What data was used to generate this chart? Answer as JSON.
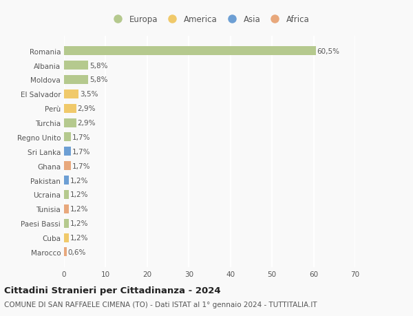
{
  "countries": [
    "Romania",
    "Albania",
    "Moldova",
    "El Salvador",
    "Perù",
    "Turchia",
    "Regno Unito",
    "Sri Lanka",
    "Ghana",
    "Pakistan",
    "Ucraina",
    "Tunisia",
    "Paesi Bassi",
    "Cuba",
    "Marocco"
  ],
  "values": [
    60.5,
    5.8,
    5.8,
    3.5,
    2.9,
    2.9,
    1.7,
    1.7,
    1.7,
    1.2,
    1.2,
    1.2,
    1.2,
    1.2,
    0.6
  ],
  "continents": [
    "Europa",
    "Europa",
    "Europa",
    "America",
    "America",
    "Europa",
    "Europa",
    "Asia",
    "Africa",
    "Asia",
    "Europa",
    "Africa",
    "Europa",
    "America",
    "Africa"
  ],
  "colors": {
    "Europa": "#b5c98e",
    "America": "#f0c96a",
    "Asia": "#6d9fd4",
    "Africa": "#e8a87c"
  },
  "legend_order": [
    "Europa",
    "America",
    "Asia",
    "Africa"
  ],
  "legend_colors": [
    "#b5c98e",
    "#f0c96a",
    "#6d9fd4",
    "#e8a87c"
  ],
  "xlim": [
    0,
    70
  ],
  "xticks": [
    0,
    10,
    20,
    30,
    40,
    50,
    60,
    70
  ],
  "title": "Cittadini Stranieri per Cittadinanza - 2024",
  "subtitle": "COMUNE DI SAN RAFFAELE CIMENA (TO) - Dati ISTAT al 1° gennaio 2024 - TUTTITALIA.IT",
  "bg_color": "#f9f9f9",
  "grid_color": "#ffffff",
  "bar_height": 0.62,
  "title_fontsize": 9.5,
  "subtitle_fontsize": 7.5,
  "label_fontsize": 7.5,
  "tick_fontsize": 7.5,
  "legend_fontsize": 8.5
}
